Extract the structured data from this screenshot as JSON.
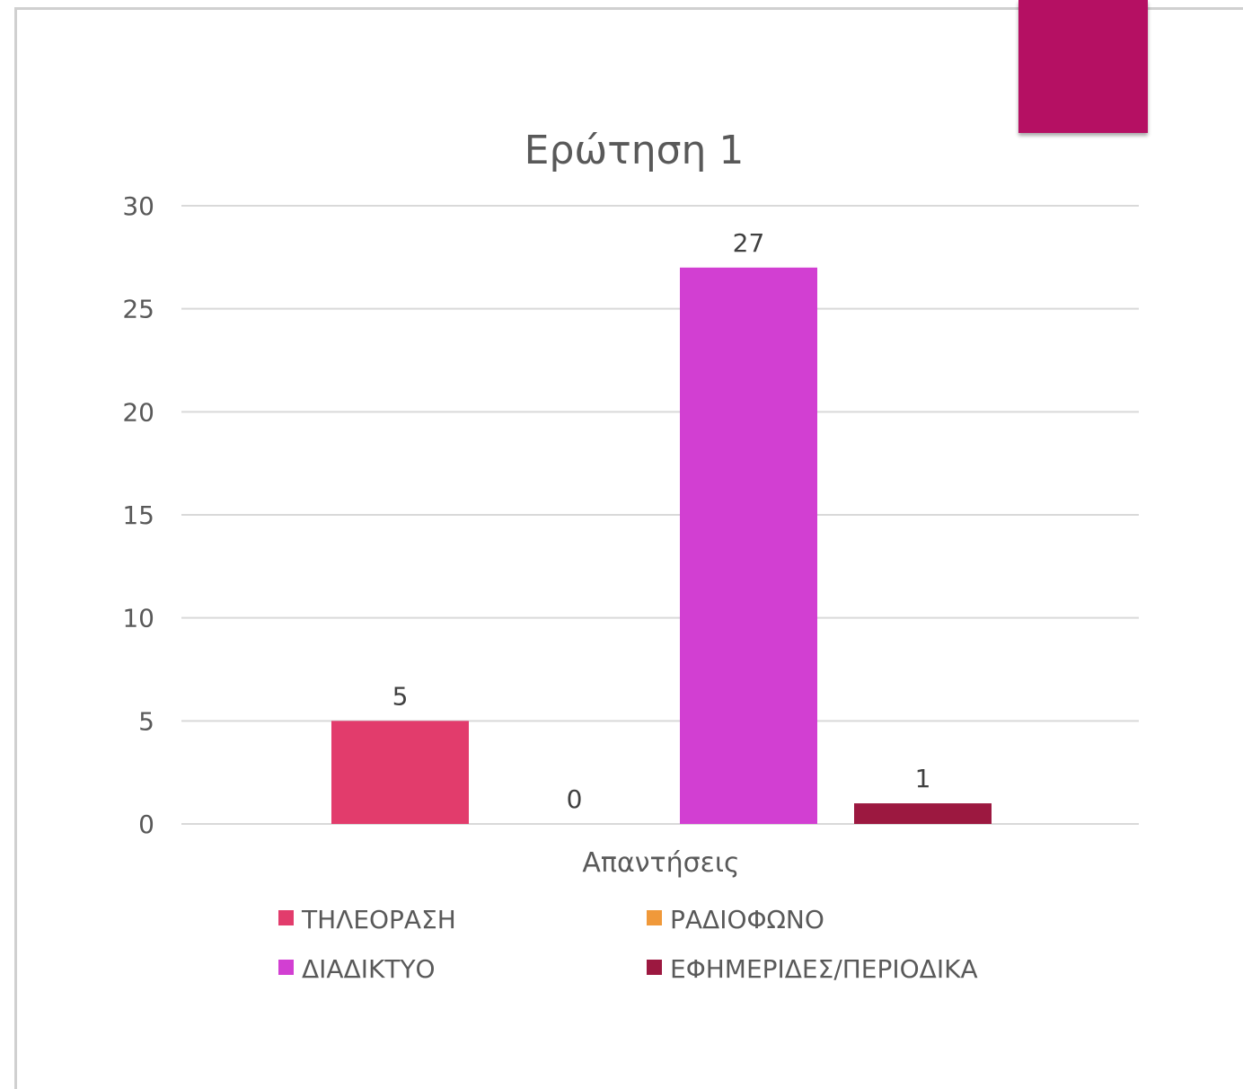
{
  "chart_data": {
    "type": "bar",
    "title": "Ερώτηση 1",
    "categories": [
      "Απαντήσεις"
    ],
    "xlabel": "",
    "ylabel": "",
    "ylim": [
      0,
      30
    ],
    "yticks": [
      0,
      5,
      10,
      15,
      20,
      25,
      30
    ],
    "grid": true,
    "legend_position": "bottom",
    "series": [
      {
        "name": "ΤΗΛΕΟΡΑΣΗ",
        "values": [
          5
        ],
        "color": "#e23c6c"
      },
      {
        "name": "ΡΑΔΙΟΦΩΝΟ",
        "values": [
          0
        ],
        "color": "#f0993a"
      },
      {
        "name": "ΔΙΑΔΙΚΤΥΟ",
        "values": [
          27
        ],
        "color": "#d23fd2"
      },
      {
        "name": "ΕΦΗΜΕΡΙΔΕΣ/ΠΕΡΙΟΔΙΚΑ",
        "values": [
          1
        ],
        "color": "#9c1840"
      }
    ]
  },
  "accent_color": "#b51063"
}
